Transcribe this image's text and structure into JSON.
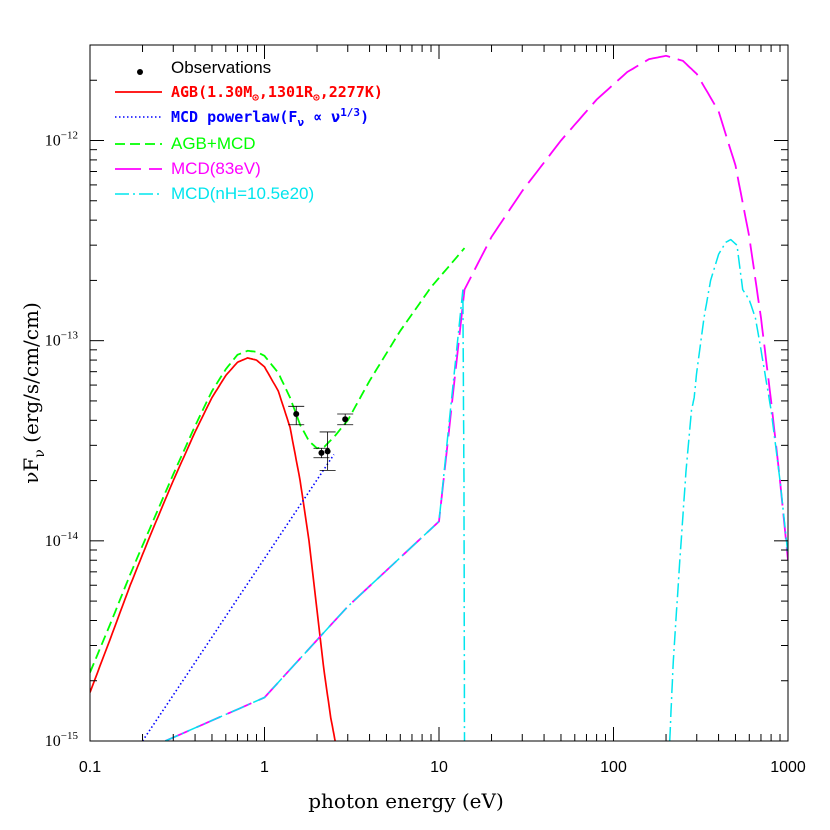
{
  "chart_data": {
    "type": "line",
    "title": "",
    "xlabel": "photon energy (eV)",
    "ylabel_main": "νF",
    "ylabel_sub": "ν",
    "ylabel_units": " (erg/s/cm/cm)",
    "x_scale": "log",
    "y_scale": "log",
    "xlim": [
      0.1,
      1000
    ],
    "ylim": [
      1e-15,
      3e-12
    ],
    "grid": false,
    "legend_position": "top-left",
    "x_ticks": [
      {
        "value": 0.1,
        "label": "0.1"
      },
      {
        "value": 1,
        "label": "1"
      },
      {
        "value": 10,
        "label": "10"
      },
      {
        "value": 100,
        "label": "100"
      },
      {
        "value": 1000,
        "label": "1000"
      }
    ],
    "y_ticks": [
      {
        "value": 1e-15,
        "base": "10",
        "exp": "−15"
      },
      {
        "value": 1e-14,
        "base": "10",
        "exp": "−14"
      },
      {
        "value": 1e-13,
        "base": "10",
        "exp": "−13"
      },
      {
        "value": 1e-12,
        "base": "10",
        "exp": "−12"
      }
    ],
    "observations": {
      "name": "Observations",
      "color": "#000000",
      "points": [
        {
          "x": 1.52,
          "y": 4.3e-14,
          "yerr_lo": 3.8e-14,
          "yerr_hi": 4.7e-14
        },
        {
          "x": 2.12,
          "y": 2.75e-14,
          "yerr_lo": 2.6e-14,
          "yerr_hi": 2.9e-14
        },
        {
          "x": 2.3,
          "y": 2.8e-14,
          "yerr_lo": 2.25e-14,
          "yerr_hi": 3.5e-14
        },
        {
          "x": 2.9,
          "y": 4.05e-14,
          "yerr_lo": 3.8e-14,
          "yerr_hi": 4.3e-14
        }
      ]
    },
    "series": [
      {
        "name": "AGB(1.30M⊙,1301R⊙,2277K)",
        "color": "#ff0000",
        "dash": "solid",
        "x": [
          0.1,
          0.13,
          0.17,
          0.22,
          0.3,
          0.4,
          0.5,
          0.6,
          0.7,
          0.8,
          0.9,
          1.0,
          1.2,
          1.4,
          1.6,
          1.8,
          2.0,
          2.2,
          2.4,
          2.6
        ],
        "y": [
          1.75e-15,
          3.2e-15,
          6e-15,
          1.05e-14,
          2e-14,
          3.5e-14,
          5.2e-14,
          6.7e-14,
          7.8e-14,
          8.2e-14,
          8e-14,
          7.4e-14,
          5.6e-14,
          3.7e-14,
          2e-14,
          1e-14,
          4.5e-15,
          2.2e-15,
          1.3e-15,
          9e-16
        ]
      },
      {
        "name": "MCD powerlaw(Fν ∝ ν^(1/3))",
        "color": "#0000ff",
        "dash": "dotted",
        "x": [
          0.2,
          2.5
        ],
        "y": [
          1e-15,
          2.7e-14
        ]
      },
      {
        "name": "AGB+MCD",
        "color": "#00ff00",
        "dash": "short-dash",
        "x": [
          0.1,
          0.13,
          0.17,
          0.22,
          0.3,
          0.4,
          0.5,
          0.6,
          0.7,
          0.8,
          0.9,
          1.0,
          1.2,
          1.4,
          1.6,
          1.8,
          2.0,
          2.2,
          2.5,
          3.0,
          4.0,
          6.0,
          9.0,
          14.0
        ],
        "y": [
          2.2e-15,
          3.8e-15,
          6.8e-15,
          1.15e-14,
          2.15e-14,
          3.75e-14,
          5.6e-14,
          7.2e-14,
          8.5e-14,
          8.9e-14,
          8.8e-14,
          8.4e-14,
          6.9e-14,
          5.2e-14,
          3.8e-14,
          3.15e-14,
          2.9e-14,
          2.95e-14,
          3.3e-14,
          4e-14,
          6.3e-14,
          1.12e-13,
          1.85e-13,
          2.9e-13
        ]
      },
      {
        "name": "MCD(83eV)",
        "color": "#ff00ff",
        "dash": "long-dash",
        "x": [
          0.27,
          1,
          3,
          10,
          14,
          20,
          30,
          50,
          80,
          120,
          160,
          200,
          250,
          300,
          400,
          500,
          600,
          700,
          800,
          900,
          1000
        ],
        "y": [
          1e-15,
          1.65e-15,
          4.7e-15,
          1.25e-14,
          1.8e-13,
          3.3e-13,
          5.6e-13,
          1e-12,
          1.6e-12,
          2.2e-12,
          2.55e-12,
          2.65e-12,
          2.5e-12,
          2.15e-12,
          1.4e-12,
          7.5e-13,
          3.3e-13,
          1.3e-13,
          5e-14,
          2e-14,
          8e-15
        ]
      },
      {
        "name": "MCD(nH=10.5e20)",
        "color": "#00e5ee",
        "dash": "dash-dot",
        "x": [
          0.27,
          1,
          3,
          10,
          13.7,
          13.9,
          14.0
        ],
        "y": [
          1e-15,
          1.65e-15,
          4.7e-15,
          1.25e-14,
          1.8e-13,
          2e-14,
          1e-15
        ],
        "x2": [
          210,
          220,
          240,
          260,
          280,
          290,
          300,
          330,
          360,
          400,
          440,
          470,
          510,
          550,
          600,
          650,
          700,
          800,
          900,
          1000
        ],
        "y2": [
          1e-15,
          2.5e-15,
          8e-15,
          2.2e-14,
          4.5e-14,
          5.2e-14,
          7e-14,
          1.3e-13,
          2e-13,
          2.7e-13,
          3.1e-13,
          3.2e-13,
          3e-13,
          1.8e-13,
          1.6e-13,
          1.3e-13,
          9e-14,
          4.5e-14,
          2e-14,
          8.5e-15
        ]
      }
    ],
    "legend": [
      {
        "label": "Observations",
        "color": "#000000",
        "kind": "marker",
        "style": "normal"
      },
      {
        "label_parts": [
          "AGB(1.30M",
          "⊙",
          ",1301R",
          "⊙",
          ",2277K)"
        ],
        "label": "AGB(1.30M⊙,1301R⊙,2277K)",
        "color": "#ff0000",
        "kind": "line",
        "dash": "solid",
        "style": "bold"
      },
      {
        "label_parts": [
          "MCD powerlaw(F",
          "ν",
          " ∝ ν",
          "1/3",
          ")"
        ],
        "label": "MCD powerlaw(Fν ∝ ν1/3)",
        "color": "#0000ff",
        "kind": "line",
        "dash": "dotted",
        "style": "bold"
      },
      {
        "label": "AGB+MCD",
        "color": "#00ff00",
        "kind": "line",
        "dash": "short-dash",
        "style": "normal"
      },
      {
        "label": "MCD(83eV)",
        "color": "#ff00ff",
        "kind": "line",
        "dash": "long-dash",
        "style": "normal"
      },
      {
        "label": "MCD(nH=10.5e20)",
        "color": "#00e5ee",
        "kind": "line",
        "dash": "dash-dot",
        "style": "normal"
      }
    ]
  }
}
